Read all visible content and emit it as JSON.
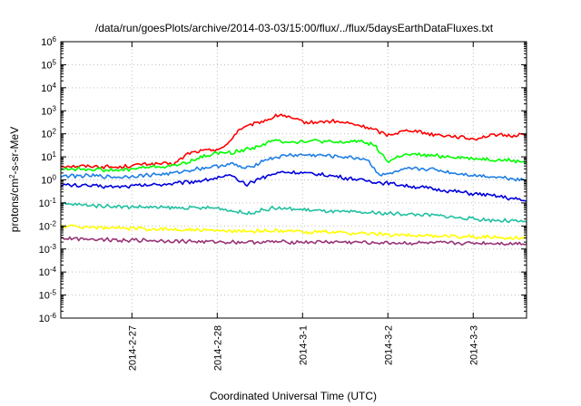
{
  "chart_data": {
    "type": "line",
    "title": "/data/run/goesPlots/archive/2014-03-03/15:00/flux/../flux/5daysEarthDataFluxes.txt",
    "xlabel": "Coordinated Universal Time (UTC)",
    "ylabel_base": "protons/cm",
    "ylabel_sup": "2",
    "ylabel_rest": "-s-sr-MeV",
    "x_axis": {
      "type": "time",
      "range": [
        "2014-02-26T04:00",
        "2014-03-03T15:00"
      ],
      "tick_labels": [
        "2014-2-27",
        "2014-2-28",
        "2014-3-1",
        "2014-3-2",
        "2014-3-3"
      ],
      "tick_dates": [
        "2014-02-27",
        "2014-02-28",
        "2014-03-01",
        "2014-03-02",
        "2014-03-03"
      ]
    },
    "y_axis": {
      "scale": "log",
      "range": [
        1e-06,
        1000000.0
      ],
      "tick_exponents": [
        -6,
        -5,
        -4,
        -3,
        -2,
        -1,
        0,
        1,
        2,
        3,
        4,
        5,
        6
      ]
    },
    "grid": true,
    "series": [
      {
        "color": "#ff0000",
        "x": [
          "2014-02-26T04:00",
          "2014-02-26T12:00",
          "2014-02-26T20:00",
          "2014-02-27T04:00",
          "2014-02-27T12:00",
          "2014-02-27T16:00",
          "2014-02-27T22:00",
          "2014-02-28T02:00",
          "2014-02-28T06:00",
          "2014-02-28T10:00",
          "2014-02-28T14:00",
          "2014-02-28T18:00",
          "2014-02-28T22:00",
          "2014-03-01T02:00",
          "2014-03-01T08:00",
          "2014-03-01T12:00",
          "2014-03-01T18:00",
          "2014-03-02T00:00",
          "2014-03-02T06:00",
          "2014-03-02T12:00",
          "2014-03-02T18:00",
          "2014-03-03T00:00",
          "2014-03-03T06:00",
          "2014-03-03T10:00",
          "2014-03-03T15:00"
        ],
        "y": [
          4,
          4,
          3.5,
          5,
          5,
          15,
          20,
          25,
          150,
          250,
          400,
          700,
          400,
          300,
          350,
          300,
          200,
          90,
          150,
          100,
          80,
          60,
          90,
          80,
          100
        ]
      },
      {
        "color": "#00ff00",
        "x": [
          "2014-02-26T04:00",
          "2014-02-26T12:00",
          "2014-02-26T20:00",
          "2014-02-27T04:00",
          "2014-02-27T12:00",
          "2014-02-27T18:00",
          "2014-02-28T00:00",
          "2014-02-28T04:00",
          "2014-02-28T10:00",
          "2014-02-28T16:00",
          "2014-02-28T22:00",
          "2014-03-01T04:00",
          "2014-03-01T10:00",
          "2014-03-01T16:00",
          "2014-03-01T20:00",
          "2014-03-02T00:00",
          "2014-03-02T04:00",
          "2014-03-02T10:00",
          "2014-03-02T18:00",
          "2014-03-03T02:00",
          "2014-03-03T10:00",
          "2014-03-03T15:00"
        ],
        "y": [
          3,
          3,
          2.5,
          3.5,
          4,
          8,
          15,
          15,
          25,
          50,
          45,
          50,
          40,
          50,
          35,
          6,
          12,
          12,
          10,
          8,
          7,
          6
        ]
      },
      {
        "color": "#1e7fe6",
        "x": [
          "2014-02-26T04:00",
          "2014-02-26T12:00",
          "2014-02-26T20:00",
          "2014-02-27T04:00",
          "2014-02-27T12:00",
          "2014-02-27T18:00",
          "2014-02-28T00:00",
          "2014-02-28T04:00",
          "2014-02-28T08:00",
          "2014-02-28T14:00",
          "2014-02-28T20:00",
          "2014-03-01T04:00",
          "2014-03-01T12:00",
          "2014-03-01T18:00",
          "2014-03-01T22:00",
          "2014-03-02T06:00",
          "2014-03-02T12:00",
          "2014-03-02T18:00",
          "2014-03-03T02:00",
          "2014-03-03T10:00",
          "2014-03-03T15:00"
        ],
        "y": [
          1.5,
          1.5,
          1.3,
          1.6,
          2,
          3,
          4,
          5,
          3,
          8,
          12,
          12,
          10,
          8,
          1.5,
          3,
          3,
          2,
          1.5,
          1.2,
          1
        ]
      },
      {
        "color": "#0000dd",
        "x": [
          "2014-02-26T04:00",
          "2014-02-26T12:00",
          "2014-02-26T20:00",
          "2014-02-27T04:00",
          "2014-02-27T12:00",
          "2014-02-27T18:00",
          "2014-02-28T00:00",
          "2014-02-28T04:00",
          "2014-02-28T08:00",
          "2014-02-28T12:00",
          "2014-02-28T18:00",
          "2014-03-01T00:00",
          "2014-03-01T08:00",
          "2014-03-01T16:00",
          "2014-03-02T00:00",
          "2014-03-02T08:00",
          "2014-03-02T16:00",
          "2014-03-03T00:00",
          "2014-03-03T08:00",
          "2014-03-03T15:00"
        ],
        "y": [
          0.6,
          0.55,
          0.5,
          0.6,
          0.7,
          0.9,
          1.2,
          1.5,
          0.6,
          1.2,
          2.2,
          2,
          1.5,
          1,
          0.7,
          0.5,
          0.35,
          0.25,
          0.18,
          0.12
        ]
      },
      {
        "color": "#20c0a0",
        "x": [
          "2014-02-26T04:00",
          "2014-02-26T20:00",
          "2014-02-27T12:00",
          "2014-02-28T00:00",
          "2014-02-28T08:00",
          "2014-02-28T16:00",
          "2014-03-01T00:00",
          "2014-03-01T12:00",
          "2014-03-02T00:00",
          "2014-03-02T12:00",
          "2014-03-03T00:00",
          "2014-03-03T15:00"
        ],
        "y": [
          0.09,
          0.07,
          0.06,
          0.06,
          0.035,
          0.06,
          0.05,
          0.04,
          0.035,
          0.03,
          0.02,
          0.015
        ]
      },
      {
        "color": "#ffff00",
        "x": [
          "2014-02-26T04:00",
          "2014-02-26T20:00",
          "2014-02-27T12:00",
          "2014-02-28T04:00",
          "2014-02-28T20:00",
          "2014-03-01T12:00",
          "2014-03-02T04:00",
          "2014-03-02T20:00",
          "2014-03-03T15:00"
        ],
        "y": [
          0.01,
          0.008,
          0.007,
          0.006,
          0.006,
          0.005,
          0.004,
          0.0035,
          0.003
        ]
      },
      {
        "color": "#993377",
        "x": [
          "2014-02-26T04:00",
          "2014-02-26T20:00",
          "2014-02-27T12:00",
          "2014-02-28T04:00",
          "2014-02-28T20:00",
          "2014-03-01T12:00",
          "2014-03-02T04:00",
          "2014-03-02T20:00",
          "2014-03-03T15:00"
        ],
        "y": [
          0.003,
          0.0025,
          0.0022,
          0.002,
          0.002,
          0.002,
          0.0018,
          0.0018,
          0.0017
        ]
      }
    ]
  }
}
